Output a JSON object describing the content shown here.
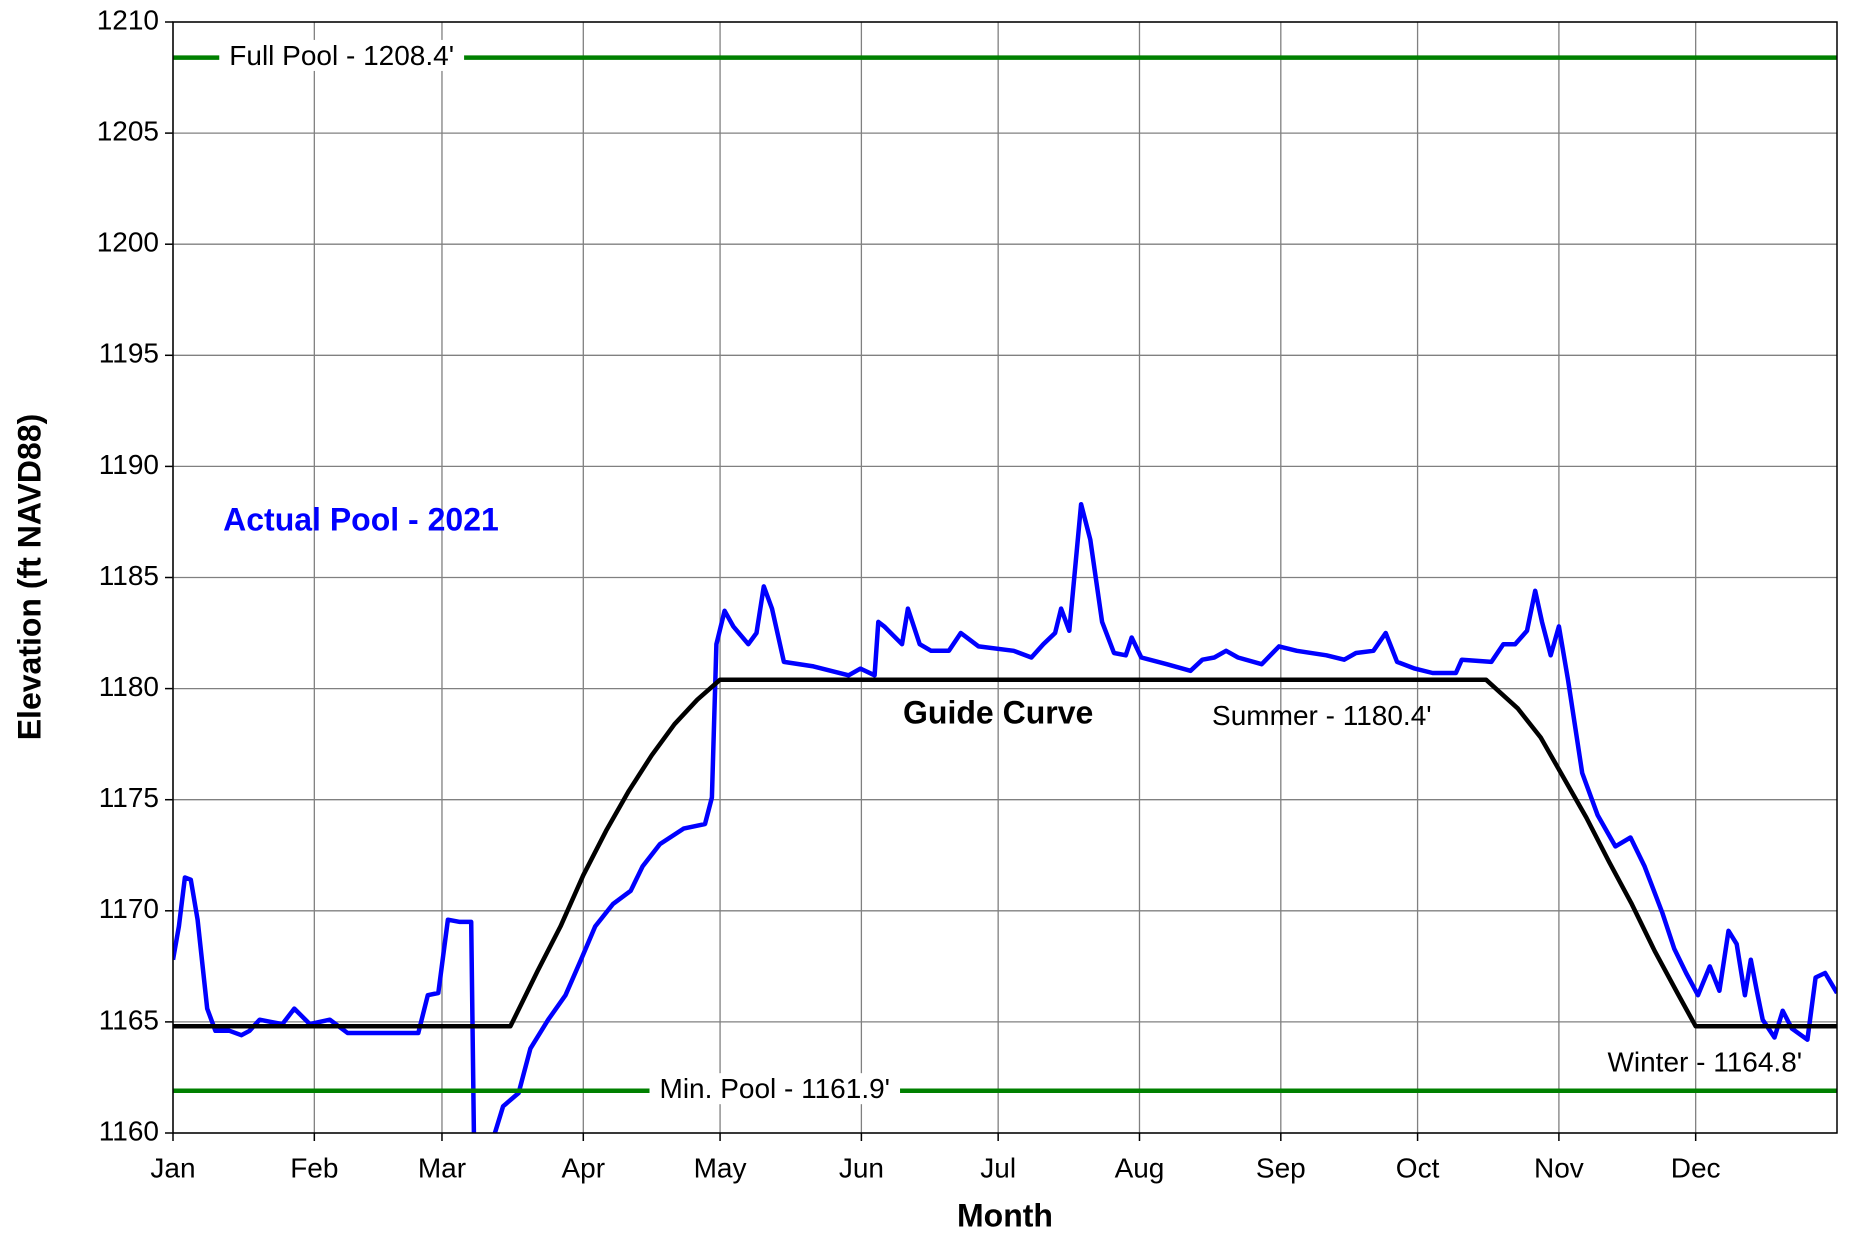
{
  "chart_data": {
    "type": "line",
    "x_label": "Month",
    "y_label": "Elevation (ft NAVD88)",
    "xlim": [
      0,
      365
    ],
    "xticks": [
      {
        "value": 0,
        "label": "Jan"
      },
      {
        "value": 31,
        "label": "Feb"
      },
      {
        "value": 59,
        "label": "Mar"
      },
      {
        "value": 90,
        "label": "Apr"
      },
      {
        "value": 120,
        "label": "May"
      },
      {
        "value": 151,
        "label": "Jun"
      },
      {
        "value": 181,
        "label": "Jul"
      },
      {
        "value": 212,
        "label": "Aug"
      },
      {
        "value": 243,
        "label": "Sep"
      },
      {
        "value": 273,
        "label": "Oct"
      },
      {
        "value": 304,
        "label": "Nov"
      },
      {
        "value": 334,
        "label": "Dec"
      }
    ],
    "ylim": [
      1160,
      1210
    ],
    "yticks": [
      1160,
      1165,
      1170,
      1175,
      1180,
      1185,
      1190,
      1195,
      1200,
      1205,
      1210
    ],
    "grid": true,
    "series": [
      {
        "name": "Actual Pool - 2021",
        "color": "#0000ff",
        "x": [
          0,
          1.3,
          2.6,
          3.9,
          5.4,
          7.5,
          9.3,
          12.4,
          15,
          16.8,
          19,
          21.5,
          24,
          26.6,
          30,
          34.4,
          38.3,
          44.7,
          53.8,
          55.9,
          58.2,
          60.3,
          62.9,
          65.4,
          66,
          68,
          70.6,
          72.4,
          75.8,
          78.4,
          82.3,
          86.1,
          89.5,
          92.6,
          96.5,
          100.4,
          103,
          106.8,
          112,
          116.7,
          118.2,
          119.2,
          121,
          122.9,
          126.2,
          128,
          129.6,
          131.4,
          134,
          140.5,
          148.2,
          150.8,
          153.9,
          154.7,
          156,
          159.9,
          161.2,
          163.8,
          166.3,
          170.2,
          172.8,
          176.7,
          184.4,
          188.3,
          190.9,
          193.5,
          194.8,
          196.6,
          199.2,
          201.2,
          203.8,
          206.4,
          209,
          210.3,
          212.4,
          218,
          223.2,
          225.8,
          228.4,
          231,
          233.6,
          238.8,
          242.6,
          246.5,
          253,
          256.9,
          259.5,
          263.3,
          266,
          268.5,
          272.4,
          276.3,
          281.4,
          282.7,
          289.2,
          291.8,
          294.4,
          297,
          298.8,
          300.3,
          302.2,
          304,
          306,
          309.1,
          312.5,
          316.4,
          319.7,
          322.8,
          326.7,
          329.3,
          331.9,
          334.5,
          337.1,
          339.2,
          341.2,
          343,
          344.8,
          346.1,
          347.4,
          348.7,
          351.3,
          353.1,
          355.1,
          358.5,
          360.3,
          362.4,
          365
        ],
        "values": [
          1167.8,
          1169.3,
          1171.5,
          1171.4,
          1169.6,
          1165.6,
          1164.6,
          1164.6,
          1164.4,
          1164.6,
          1165.1,
          1165.0,
          1164.9,
          1165.6,
          1164.9,
          1165.1,
          1164.5,
          1164.5,
          1164.5,
          1166.2,
          1166.3,
          1169.6,
          1169.5,
          1169.5,
          1160,
          null,
          1160,
          1161.2,
          1161.8,
          1163.8,
          1165.1,
          1166.2,
          1167.8,
          1169.3,
          1170.3,
          1170.9,
          1172.0,
          1173.0,
          1173.7,
          1173.9,
          1175.1,
          1182.0,
          1183.5,
          1182.8,
          1182.0,
          1182.5,
          1184.6,
          1183.6,
          1181.2,
          1181.0,
          1180.6,
          1180.9,
          1180.6,
          1183.0,
          1182.8,
          1182.0,
          1183.6,
          1182.0,
          1181.7,
          1181.7,
          1182.5,
          1181.9,
          1181.7,
          1181.4,
          1182.0,
          1182.5,
          1183.6,
          1182.6,
          1188.3,
          1186.7,
          1183.0,
          1181.6,
          1181.5,
          1182.3,
          1181.4,
          1181.1,
          1180.8,
          1181.3,
          1181.4,
          1181.7,
          1181.4,
          1181.1,
          1181.9,
          1181.7,
          1181.5,
          1181.3,
          1181.6,
          1181.7,
          1182.5,
          1181.2,
          1180.9,
          1180.7,
          1180.7,
          1181.3,
          1181.2,
          1182.0,
          1182.0,
          1182.6,
          1184.4,
          1183.0,
          1181.5,
          1182.8,
          1180.4,
          1176.2,
          1174.3,
          1172.9,
          1173.3,
          1172.0,
          1169.9,
          1168.3,
          1167.2,
          1166.2,
          1167.5,
          1166.4,
          1169.1,
          1168.5,
          1166.2,
          1167.8,
          1166.4,
          1165.1,
          1164.3,
          1165.5,
          1164.7,
          1164.2,
          1167.0,
          1167.2,
          1166.3
        ]
      },
      {
        "name": "Guide Curve",
        "color": "#000000",
        "x": [
          0,
          74,
          80,
          85,
          90,
          95,
          100,
          105,
          110,
          115,
          120,
          288,
          295,
          300,
          305,
          310,
          315,
          320,
          325,
          330,
          334,
          365
        ],
        "values": [
          1164.8,
          1164.8,
          1167.3,
          1169.3,
          1171.6,
          1173.6,
          1175.4,
          1177.0,
          1178.4,
          1179.5,
          1180.4,
          1180.4,
          1179.1,
          1177.8,
          1176.0,
          1174.2,
          1172.2,
          1170.3,
          1168.2,
          1166.3,
          1164.8,
          1164.8
        ]
      },
      {
        "name": "Full Pool - 1208.4'",
        "color": "#008000",
        "x": [
          0,
          365
        ],
        "values": [
          1208.4,
          1208.4
        ]
      },
      {
        "name": "Min. Pool - 1161.9'",
        "color": "#008000",
        "x": [
          0,
          365
        ],
        "values": [
          1161.9,
          1161.9
        ]
      }
    ],
    "annotations": [
      "Summer - 1180.4'",
      "Winter - 1164.8'"
    ]
  }
}
